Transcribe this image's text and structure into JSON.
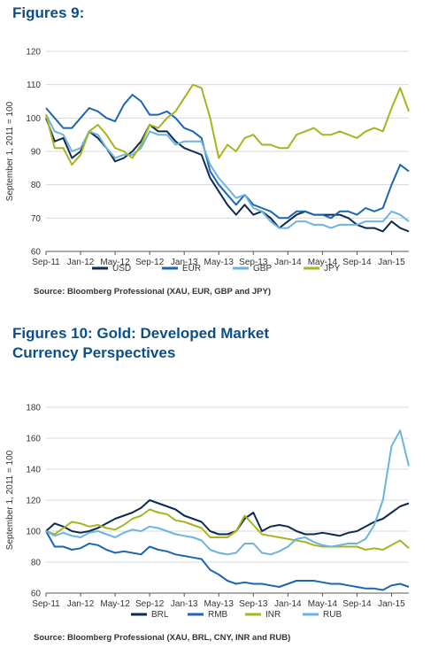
{
  "figure1": {
    "title": "Figures 9:",
    "source": "Source: Bloomberg Professional (XAU, EUR, GBP and JPY)"
  },
  "figure2": {
    "title": "Figures 10: Gold: Developed Market Currency Perspectives",
    "source": "Source: Bloomberg Professional (XAU, BRL, CNY, INR and RUB)"
  },
  "chart_data": [
    {
      "type": "line",
      "ylabel": "September 1, 2011 = 100",
      "ylim": [
        60,
        120
      ],
      "yticks": [
        60,
        70,
        80,
        90,
        100,
        110,
        120
      ],
      "xticks": [
        "Sep-11",
        "Jan-12",
        "May-12",
        "Sep-12",
        "Jan-13",
        "May-13",
        "Sep-13",
        "Jan-14",
        "May-14",
        "Sep-14",
        "Jan-15"
      ],
      "grid": "horizontal",
      "legend": "bottom",
      "x": [
        "Sep-11",
        "Oct-11",
        "Nov-11",
        "Dec-11",
        "Jan-12",
        "Feb-12",
        "Mar-12",
        "Apr-12",
        "May-12",
        "Jun-12",
        "Jul-12",
        "Aug-12",
        "Sep-12",
        "Oct-12",
        "Nov-12",
        "Dec-12",
        "Jan-13",
        "Feb-13",
        "Mar-13",
        "Apr-13",
        "May-13",
        "Jun-13",
        "Jul-13",
        "Aug-13",
        "Sep-13",
        "Oct-13",
        "Nov-13",
        "Dec-13",
        "Jan-14",
        "Feb-14",
        "Mar-14",
        "Apr-14",
        "May-14",
        "Jun-14",
        "Jul-14",
        "Aug-14",
        "Sep-14",
        "Oct-14",
        "Nov-14",
        "Dec-14",
        "Jan-15",
        "Feb-15",
        "Mar-15"
      ],
      "series": [
        {
          "name": "USD",
          "color": "#0d2a4f",
          "values": [
            100,
            93,
            94,
            88,
            90,
            96,
            94,
            91,
            87,
            88,
            90,
            93,
            98,
            96,
            96,
            93,
            91,
            90,
            89,
            82,
            78,
            74,
            71,
            74,
            71,
            72,
            70,
            67,
            69,
            71,
            72,
            71,
            71,
            71,
            71,
            70,
            68,
            67,
            67,
            66,
            69,
            67,
            66
          ]
        },
        {
          "name": "EUR",
          "color": "#1a66b3",
          "values": [
            103,
            100,
            97,
            97,
            100,
            103,
            102,
            100,
            99,
            104,
            107,
            105,
            101,
            101,
            102,
            100,
            97,
            96,
            94,
            84,
            80,
            77,
            74,
            77,
            74,
            73,
            72,
            70,
            70,
            72,
            72,
            71,
            71,
            70,
            72,
            72,
            71,
            73,
            72,
            73,
            80,
            86,
            84
          ]
        },
        {
          "name": "GBP",
          "color": "#6bb3e0",
          "values": [
            101,
            96,
            95,
            90,
            91,
            96,
            95,
            91,
            88,
            89,
            89,
            91,
            96,
            95,
            95,
            92,
            93,
            93,
            93,
            86,
            82,
            79,
            76,
            77,
            73,
            72,
            69,
            67,
            67,
            69,
            69,
            68,
            68,
            67,
            68,
            68,
            68,
            69,
            69,
            69,
            72,
            71,
            69
          ]
        },
        {
          "name": "JPY",
          "color": "#a6b51e",
          "values": [
            101,
            91,
            91,
            86,
            89,
            96,
            98,
            95,
            91,
            90,
            88,
            92,
            98,
            97,
            100,
            102,
            106,
            110,
            109,
            100,
            88,
            92,
            90,
            94,
            95,
            92,
            92,
            91,
            91,
            95,
            96,
            97,
            95,
            95,
            96,
            95,
            94,
            96,
            97,
            96,
            103,
            109,
            102
          ]
        }
      ]
    },
    {
      "type": "line",
      "ylabel": "September 1, 2011 = 100",
      "ylim": [
        60,
        180
      ],
      "yticks": [
        60,
        80,
        100,
        120,
        140,
        160,
        180
      ],
      "xticks": [
        "Sep-11",
        "Jan-12",
        "May-12",
        "Sep-12",
        "Jan-13",
        "May-13",
        "Sep-13",
        "Jan-14",
        "May-14",
        "Sep-14",
        "Jan-15"
      ],
      "grid": "horizontal",
      "legend": "bottom",
      "x": [
        "Sep-11",
        "Oct-11",
        "Nov-11",
        "Dec-11",
        "Jan-12",
        "Feb-12",
        "Mar-12",
        "Apr-12",
        "May-12",
        "Jun-12",
        "Jul-12",
        "Aug-12",
        "Sep-12",
        "Oct-12",
        "Nov-12",
        "Dec-12",
        "Jan-13",
        "Feb-13",
        "Mar-13",
        "Apr-13",
        "May-13",
        "Jun-13",
        "Jul-13",
        "Aug-13",
        "Sep-13",
        "Oct-13",
        "Nov-13",
        "Dec-13",
        "Jan-14",
        "Feb-14",
        "Mar-14",
        "Apr-14",
        "May-14",
        "Jun-14",
        "Jul-14",
        "Aug-14",
        "Sep-14",
        "Oct-14",
        "Nov-14",
        "Dec-14",
        "Jan-15",
        "Feb-15",
        "Mar-15"
      ],
      "series": [
        {
          "name": "BRL",
          "color": "#0d2a4f",
          "values": [
            100,
            105,
            103,
            100,
            99,
            100,
            102,
            105,
            108,
            110,
            112,
            115,
            120,
            118,
            116,
            114,
            110,
            108,
            106,
            100,
            98,
            98,
            100,
            108,
            112,
            100,
            103,
            104,
            103,
            100,
            98,
            98,
            99,
            98,
            97,
            99,
            100,
            103,
            106,
            108,
            112,
            116,
            118
          ]
        },
        {
          "name": "RMB",
          "color": "#1a66b3",
          "values": [
            100,
            90,
            90,
            88,
            89,
            92,
            91,
            88,
            86,
            87,
            86,
            85,
            90,
            88,
            87,
            85,
            84,
            83,
            82,
            75,
            72,
            68,
            66,
            67,
            66,
            66,
            65,
            64,
            66,
            68,
            68,
            68,
            67,
            66,
            66,
            65,
            64,
            63,
            63,
            62,
            65,
            66,
            64
          ]
        },
        {
          "name": "INR",
          "color": "#a6b51e",
          "values": [
            100,
            98,
            102,
            106,
            105,
            103,
            104,
            102,
            101,
            104,
            108,
            110,
            114,
            112,
            111,
            107,
            106,
            104,
            102,
            96,
            96,
            96,
            100,
            110,
            104,
            98,
            97,
            96,
            95,
            94,
            93,
            91,
            90,
            90,
            90,
            90,
            90,
            88,
            89,
            88,
            91,
            94,
            89
          ]
        },
        {
          "name": "RUB",
          "color": "#6bb3e0",
          "values": [
            100,
            97,
            99,
            97,
            96,
            99,
            100,
            98,
            96,
            99,
            101,
            100,
            103,
            102,
            100,
            98,
            97,
            96,
            94,
            88,
            86,
            85,
            86,
            92,
            92,
            86,
            85,
            87,
            90,
            95,
            96,
            93,
            91,
            90,
            91,
            92,
            92,
            95,
            104,
            120,
            155,
            165,
            142
          ]
        }
      ]
    }
  ]
}
